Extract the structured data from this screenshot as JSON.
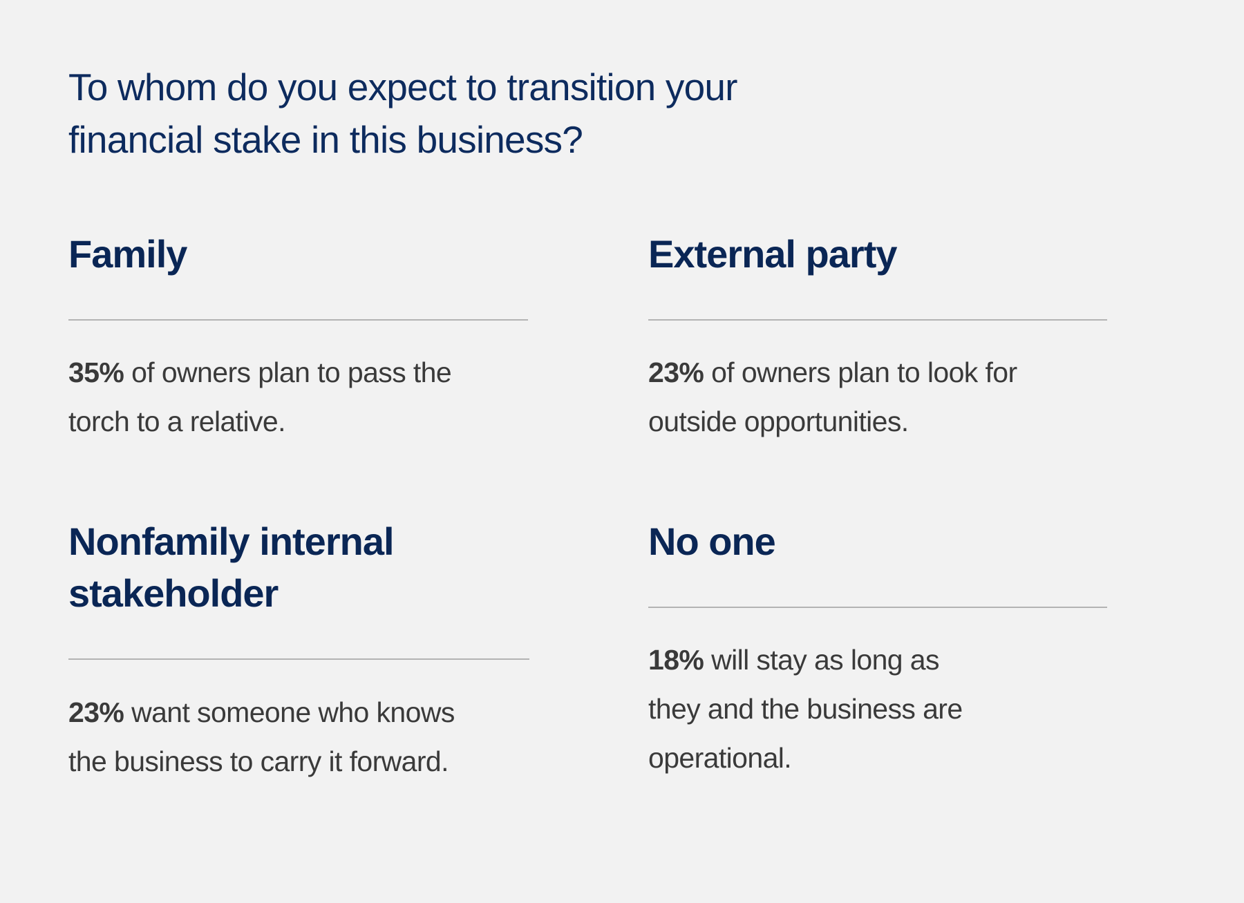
{
  "title": {
    "lines": [
      "To whom do you expect to transition your",
      "financial stake in this business?"
    ]
  },
  "items": [
    {
      "heading": [
        "Family"
      ],
      "stat": "35%",
      "text": [
        "of owners plan to pass the",
        "torch to a relative."
      ]
    },
    {
      "heading": [
        "External party"
      ],
      "stat": "23%",
      "text": [
        "of owners plan to look for",
        "outside opportunities."
      ]
    },
    {
      "heading": [
        "Nonfamily internal",
        "stakeholder"
      ],
      "stat": "23%",
      "text": [
        "want someone who knows",
        "the business to carry it forward."
      ]
    },
    {
      "heading": [
        "No one"
      ],
      "stat": "18%",
      "text": [
        "will stay as long as",
        "they and the business are",
        "operational."
      ]
    }
  ]
}
